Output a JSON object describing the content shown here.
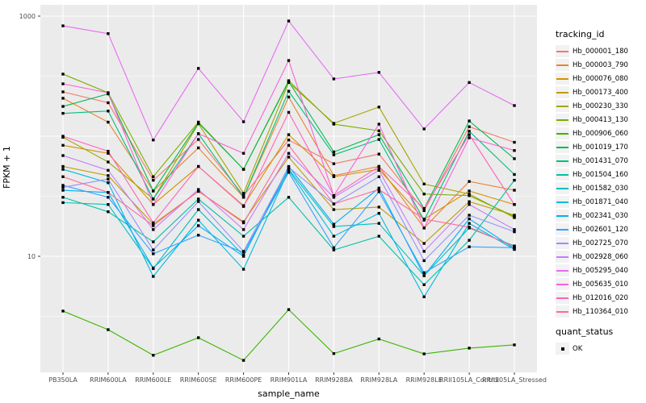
{
  "chart_data": {
    "type": "line",
    "title": "",
    "xlabel": "sample_name",
    "ylabel": "FPKM + 1",
    "y_scale": "log10",
    "ylim": [
      1,
      1100
    ],
    "y_ticks": [
      "10",
      "1000"
    ],
    "grid": "on",
    "legend_position": "right",
    "legend_title": "tracking_id",
    "quant_legend": {
      "title": "quant_status",
      "items": [
        {
          "label": "OK"
        }
      ]
    },
    "categories": [
      "PB350LA",
      "RRIM600LA",
      "RRIM600LE",
      "RRIM600SE",
      "RRIM600PE",
      "RRIM901LA",
      "RRIM928BA",
      "RRIM928LA",
      "RRIM928LE",
      "RRII105LA_Control",
      "RRII105LA_Stressed"
    ],
    "point_color": "#000000",
    "series": [
      {
        "name": "Hb_000001_180",
        "color": "#F8766D",
        "values": [
          234,
          190,
          43,
          94,
          32,
          93,
          59,
          71,
          24,
          120,
          89
        ]
      },
      {
        "name": "Hb_000003_790",
        "color": "#EA8331",
        "values": [
          207,
          131,
          35,
          80,
          31,
          212,
          47,
          56,
          17.2,
          42,
          35.5
        ]
      },
      {
        "name": "Hb_000076_080",
        "color": "#D89000",
        "values": [
          84,
          72,
          27,
          56,
          26.4,
          103,
          46,
          53,
          20.4,
          35,
          27
        ]
      },
      {
        "name": "Hb_000173_400",
        "color": "#C09B00",
        "values": [
          56,
          47,
          18.5,
          34.7,
          19.4,
          67,
          24.5,
          25.7,
          12.8,
          28.5,
          22
        ]
      },
      {
        "name": "Hb_000230_330",
        "color": "#A3A500",
        "values": [
          98,
          61,
          30,
          127,
          33.5,
          280,
          128,
          175,
          40,
          33,
          21
        ]
      },
      {
        "name": "Hb_000413_130",
        "color": "#7CAE00",
        "values": [
          329,
          230,
          46,
          131,
          53,
          290,
          126,
          111,
          33,
          32,
          21.5
        ]
      },
      {
        "name": "Hb_000906_060",
        "color": "#39B600",
        "values": [
          3.5,
          2.45,
          1.5,
          2.1,
          1.36,
          3.6,
          1.55,
          2.05,
          1.54,
          1.72,
          1.83
        ]
      },
      {
        "name": "Hb_001019_170",
        "color": "#00BB4E",
        "values": [
          177,
          225,
          35,
          129,
          53,
          285,
          74,
          103,
          25,
          134,
          65
        ]
      },
      {
        "name": "Hb_001431_070",
        "color": "#00BF7D",
        "values": [
          155,
          162,
          30,
          105,
          31,
          237,
          70,
          94,
          20,
          110,
          48
        ]
      },
      {
        "name": "Hb_001504_160",
        "color": "#00C1A3",
        "values": [
          31,
          23.5,
          13.2,
          30,
          14.7,
          31,
          11.3,
          14.7,
          5.8,
          13.6,
          43
        ]
      },
      {
        "name": "Hb_001582_030",
        "color": "#00BFC4",
        "values": [
          28,
          27,
          7.9,
          24.5,
          10.2,
          53,
          17.7,
          18.8,
          6.9,
          17.2,
          12.2
        ]
      },
      {
        "name": "Hb_001871_040",
        "color": "#00BAE0",
        "values": [
          53,
          41,
          6.8,
          20,
          7.8,
          52,
          14.7,
          22.8,
          4.6,
          18.8,
          11.4
        ]
      },
      {
        "name": "Hb_002341_030",
        "color": "#00B0F6",
        "values": [
          35.5,
          34,
          8,
          18,
          10,
          56,
          18.5,
          37,
          6.9,
          20.5,
          11.6
        ]
      },
      {
        "name": "Hb_002601_120",
        "color": "#35A2FF",
        "values": [
          39,
          31,
          10.5,
          15,
          10.8,
          50,
          11.8,
          34.5,
          7.3,
          12,
          11.8
        ]
      },
      {
        "name": "Hb_002725_070",
        "color": "#9590FF",
        "values": [
          37.5,
          44,
          11.3,
          28.6,
          11,
          55,
          27.3,
          46,
          9.2,
          22,
          16
        ]
      },
      {
        "name": "Hb_002928_060",
        "color": "#C77CFF",
        "values": [
          69,
          52,
          16.7,
          36,
          16.7,
          72,
          31,
          52,
          11,
          27,
          16.7
        ]
      },
      {
        "name": "Hb_005295_040",
        "color": "#E76BF3",
        "values": [
          830,
          715,
          93,
          367,
          132,
          911,
          300,
          340,
          115,
          280,
          180
        ]
      },
      {
        "name": "Hb_005635_010",
        "color": "#FA62DB",
        "values": [
          273,
          230,
          27,
          105,
          72,
          427,
          32,
          126,
          17.2,
          97,
          76
        ]
      },
      {
        "name": "Hb_012016_020",
        "color": "#FF62BC",
        "values": [
          100,
          75,
          19,
          56,
          26,
          158,
          32,
          56,
          25,
          103,
          27
        ]
      },
      {
        "name": "Hb_110364_010",
        "color": "#FF6A98",
        "values": [
          46,
          34,
          18,
          35,
          19,
          84,
          27.3,
          36,
          20.4,
          17.5,
          12
        ]
      }
    ],
    "panel_bg": "#EBEBEB",
    "gridline_color": "#FFFFFF",
    "axis_text_color": "#4D4D4D"
  }
}
